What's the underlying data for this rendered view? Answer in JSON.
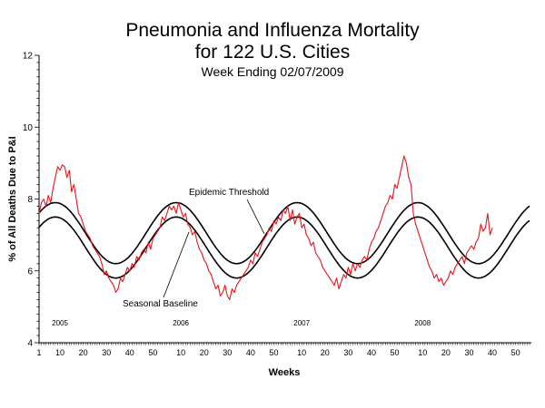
{
  "chart_data": {
    "type": "line",
    "title": "Pneumonia and Influenza Mortality",
    "subtitle": "for 122 U.S. Cities",
    "week_ending": "Week Ending 02/07/2009",
    "xlabel": "Weeks",
    "ylabel": "% of All Deaths Due to P&I",
    "ylim": [
      4,
      12
    ],
    "yticks": [
      4,
      6,
      8,
      10,
      12
    ],
    "years": [
      {
        "label": "2005",
        "week_index": 9
      },
      {
        "label": "2006",
        "week_index": 61
      },
      {
        "label": "2007",
        "week_index": 113
      },
      {
        "label": "2008",
        "week_index": 165
      }
    ],
    "xtick_cycle": [
      "1",
      "10",
      "20",
      "30",
      "40",
      "50"
    ],
    "xtick_tail": [
      "10",
      "20",
      "30",
      "40",
      "50"
    ],
    "annotations": {
      "threshold_label": "Epidemic Threshold",
      "baseline_label": "Seasonal Baseline"
    },
    "series": [
      {
        "name": "Epidemic Threshold",
        "color": "#000000",
        "model": {
          "mean": 7.05,
          "amplitude": 0.85,
          "period": 52,
          "peak_week": 8
        }
      },
      {
        "name": "Seasonal Baseline",
        "color": "#000000",
        "model": {
          "mean": 6.65,
          "amplitude": 0.85,
          "period": 52,
          "peak_week": 8
        }
      },
      {
        "name": "Observed P&I %",
        "color": "#e8141c",
        "values": [
          7.6,
          7.9,
          8.0,
          7.8,
          8.1,
          7.9,
          8.3,
          8.6,
          8.9,
          8.8,
          8.95,
          8.9,
          8.6,
          8.8,
          8.2,
          8.4,
          8.0,
          7.6,
          7.5,
          7.3,
          7.1,
          7.0,
          6.9,
          6.7,
          6.6,
          6.5,
          6.4,
          6.2,
          5.9,
          6.0,
          5.8,
          5.7,
          5.6,
          5.4,
          5.5,
          5.8,
          5.7,
          5.9,
          6.1,
          6.0,
          6.2,
          6.1,
          6.4,
          6.3,
          6.5,
          6.6,
          6.5,
          6.8,
          6.6,
          6.9,
          7.0,
          7.1,
          7.2,
          7.5,
          7.4,
          7.6,
          7.8,
          7.7,
          7.8,
          7.6,
          7.9,
          7.7,
          7.5,
          7.6,
          7.3,
          7.2,
          7.0,
          7.1,
          6.8,
          6.6,
          6.5,
          6.3,
          6.2,
          6.0,
          5.9,
          5.7,
          5.5,
          5.6,
          5.3,
          5.4,
          5.6,
          5.3,
          5.2,
          5.5,
          5.4,
          5.6,
          5.7,
          5.8,
          5.9,
          6.0,
          6.1,
          6.3,
          6.2,
          6.5,
          6.4,
          6.6,
          6.8,
          6.9,
          7.0,
          7.2,
          7.1,
          7.4,
          7.3,
          7.5,
          7.4,
          7.7,
          7.6,
          7.8,
          7.4,
          7.7,
          7.3,
          7.5,
          7.6,
          7.2,
          7.3,
          7.0,
          6.9,
          6.7,
          6.8,
          6.5,
          6.4,
          6.3,
          6.1,
          6.0,
          5.9,
          5.8,
          5.7,
          5.6,
          5.8,
          5.5,
          5.7,
          5.9,
          5.8,
          6.1,
          5.9,
          6.2,
          6.0,
          6.2,
          6.1,
          6.3,
          6.4,
          6.3,
          6.6,
          6.8,
          6.9,
          7.1,
          7.2,
          7.4,
          7.6,
          7.8,
          7.9,
          8.1,
          8.0,
          8.4,
          8.3,
          8.6,
          8.9,
          9.2,
          9.0,
          8.6,
          8.4,
          7.6,
          7.3,
          7.1,
          6.9,
          6.7,
          6.5,
          6.3,
          6.1,
          6.0,
          5.8,
          5.9,
          5.7,
          5.8,
          5.6,
          5.7,
          5.8,
          6.0,
          5.9,
          6.1,
          6.2,
          6.3,
          6.4,
          6.2,
          6.5,
          6.6,
          6.7,
          6.6,
          6.8,
          6.9,
          7.3,
          7.1,
          7.2,
          7.6,
          7.0,
          7.2
        ]
      }
    ]
  }
}
